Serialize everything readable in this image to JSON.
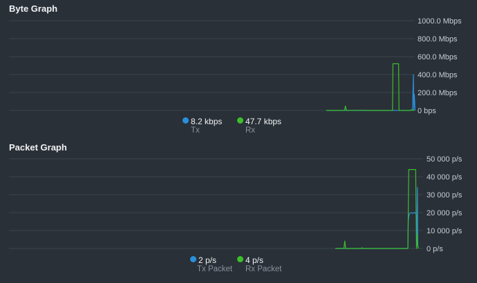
{
  "colors": {
    "tx": "#2a8fdc",
    "rx": "#3cbf2a",
    "grid": "#3b434c",
    "background": "#2a3038"
  },
  "byte_graph": {
    "title": "Byte Graph",
    "legend": [
      {
        "value": "8.2 kbps",
        "label": "Tx",
        "color": "#2a8fdc"
      },
      {
        "value": "47.7 kbps",
        "label": "Rx",
        "color": "#3cbf2a"
      }
    ],
    "chart_data": {
      "type": "line",
      "y_ticks": [
        "0 bps",
        "200.0 Mbps",
        "400.0 Mbps",
        "600.0 Mbps",
        "800.0 Mbps",
        "1000.0 Mbps"
      ],
      "ylim": [
        0,
        1000
      ],
      "grid": true,
      "series": [
        {
          "name": "Tx",
          "color": "#2a8fdc",
          "points": [
            [
              0,
              0
            ],
            [
              80,
              0
            ],
            [
              97,
              0
            ],
            [
              98,
              8
            ],
            [
              99,
              12
            ],
            [
              100,
              400
            ],
            [
              100.5,
              0
            ],
            [
              101,
              180
            ],
            [
              102,
              0
            ]
          ]
        },
        {
          "name": "Rx",
          "color": "#3cbf2a",
          "points": [
            [
              0,
              0
            ],
            [
              20,
              0
            ],
            [
              21,
              2
            ],
            [
              22,
              50
            ],
            [
              23,
              2
            ],
            [
              24,
              0
            ],
            [
              45,
              2
            ],
            [
              46,
              0
            ],
            [
              60,
              0
            ],
            [
              70,
              0
            ],
            [
              75,
              0
            ],
            [
              76,
              0
            ],
            [
              76.5,
              520
            ],
            [
              82,
              520
            ],
            [
              83,
              520
            ],
            [
              83.5,
              0
            ],
            [
              97,
              0
            ],
            [
              98,
              10
            ],
            [
              99,
              0
            ],
            [
              100,
              5
            ],
            [
              101,
              0
            ]
          ]
        }
      ]
    }
  },
  "packet_graph": {
    "title": "Packet Graph",
    "legend": [
      {
        "value": "2 p/s",
        "label": "Tx Packet",
        "color": "#2a8fdc"
      },
      {
        "value": "4 p/s",
        "label": "Rx Packet",
        "color": "#3cbf2a"
      }
    ],
    "chart_data": {
      "type": "line",
      "y_ticks": [
        "0 p/s",
        "10 000 p/s",
        "20 000 p/s",
        "30 000 p/s",
        "40 000 p/s",
        "50 000 p/s"
      ],
      "ylim": [
        0,
        50000
      ],
      "grid": true,
      "series": [
        {
          "name": "Tx Packet",
          "color": "#2a8fdc",
          "points": [
            [
              0,
              0
            ],
            [
              80,
              0
            ],
            [
              84,
              0
            ],
            [
              84.5,
              15000
            ],
            [
              85,
              18000
            ],
            [
              86,
              19500
            ],
            [
              88,
              20000
            ],
            [
              90,
              19500
            ],
            [
              91,
              20000
            ],
            [
              93,
              19800
            ],
            [
              94,
              18000
            ],
            [
              94.5,
              8000
            ],
            [
              95,
              34000
            ],
            [
              95.5,
              2000
            ],
            [
              96,
              0
            ]
          ]
        },
        {
          "name": "Rx Packet",
          "color": "#3cbf2a",
          "points": [
            [
              0,
              0
            ],
            [
              10,
              0
            ],
            [
              11,
              4200
            ],
            [
              12,
              0
            ],
            [
              30,
              0
            ],
            [
              31,
              400
            ],
            [
              32,
              0
            ],
            [
              55,
              0
            ],
            [
              70,
              0
            ],
            [
              84,
              0
            ],
            [
              85,
              44000
            ],
            [
              92,
              44000
            ],
            [
              93,
              44000
            ],
            [
              94,
              0
            ],
            [
              94.5,
              8000
            ],
            [
              95,
              2000
            ],
            [
              96,
              0
            ]
          ]
        }
      ]
    }
  }
}
